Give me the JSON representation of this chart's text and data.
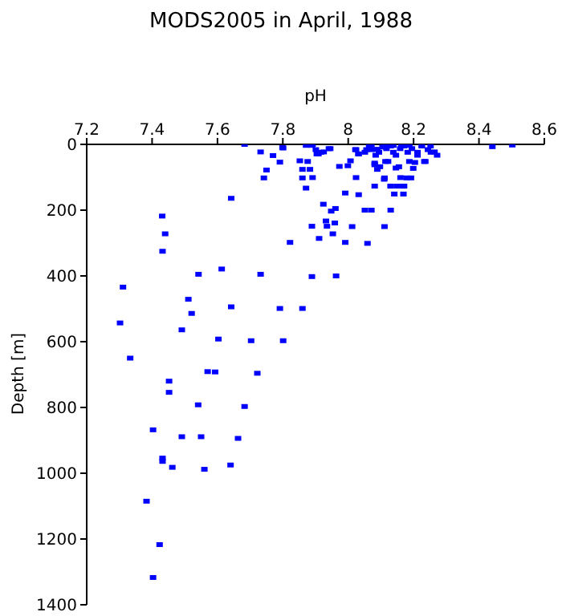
{
  "chart_data": {
    "type": "scatter",
    "title": "MODS2005 in April, 1988",
    "xlabel": "pH",
    "ylabel": "Depth [m]",
    "color": "#0000ff",
    "marker": "square",
    "xlim": [
      7.2,
      8.6
    ],
    "xticks": [
      7.2,
      7.4,
      7.6,
      7.8,
      8,
      8.2,
      8.4,
      8.6
    ],
    "ylim": [
      1400,
      0
    ],
    "yticks": [
      0,
      200,
      400,
      600,
      800,
      1000,
      1200,
      1400
    ],
    "x": [
      7.683,
      7.732,
      7.77,
      7.801,
      7.891,
      7.901,
      7.909,
      7.925,
      7.945,
      8.024,
      8.032,
      8.056,
      8.071,
      8.089,
      8.114,
      8.138,
      8.163,
      8.187,
      8.225,
      8.252,
      8.264,
      8.272,
      8.441,
      8.502,
      7.791,
      7.75,
      7.742,
      7.852,
      7.876,
      7.86,
      7.86,
      7.883,
      7.891,
      7.871,
      7.973,
      8.007,
      7.999,
      8.024,
      7.991,
      8.032,
      8.081,
      8.089,
      8.114,
      8.111,
      8.13,
      8.146,
      8.16,
      8.171,
      8.141,
      8.169,
      8.179,
      8.192,
      8.204,
      8.233,
      8.212,
      7.642,
      7.431,
      7.44,
      7.432,
      7.542,
      7.613,
      7.732,
      7.889,
      7.963,
      7.822,
      7.911,
      7.953,
      7.932,
      7.924,
      7.948,
      7.961,
      7.935,
      7.959,
      7.889,
      7.991,
      8.012,
      8.051,
      8.071,
      8.111,
      8.13,
      8.059,
      7.311,
      7.511,
      7.521,
      7.642,
      7.791,
      7.86,
      7.302,
      7.491,
      7.603,
      7.703,
      7.801,
      7.333,
      7.57,
      7.593,
      7.722,
      7.452,
      7.452,
      7.541,
      7.683,
      7.403,
      7.491,
      7.55,
      7.663,
      7.432,
      7.432,
      7.462,
      7.56,
      7.64,
      7.383,
      7.423,
      7.403,
      7.799,
      7.871,
      7.889,
      7.904,
      7.917,
      7.941,
      8.022,
      8.031,
      8.051,
      8.064,
      8.072,
      8.084,
      8.094,
      8.105,
      8.117,
      8.13,
      8.138,
      8.146,
      8.159,
      8.171,
      8.182,
      8.195,
      8.212,
      8.225,
      8.244,
      8.253,
      8.081,
      8.097,
      8.122,
      8.155,
      8.187,
      8.236,
      8.199,
      8.11,
      8.081,
      8.13,
      8.15,
      8.168
    ],
    "values": [
      0,
      23,
      34,
      11,
      0,
      16,
      29,
      23,
      13,
      16,
      29,
      16,
      2,
      15,
      5,
      3,
      2,
      3,
      3,
      5,
      23,
      33,
      7,
      2,
      54,
      78,
      102,
      50,
      52,
      76,
      102,
      76,
      101,
      133,
      67,
      50,
      65,
      101,
      148,
      153,
      62,
      76,
      52,
      102,
      127,
      72,
      101,
      127,
      151,
      151,
      102,
      102,
      55,
      52,
      33,
      164,
      218,
      272,
      325,
      395,
      379,
      395,
      402,
      400,
      298,
      286,
      272,
      233,
      182,
      203,
      195,
      249,
      239,
      249,
      298,
      250,
      200,
      200,
      250,
      200,
      301,
      434,
      471,
      514,
      494,
      499,
      499,
      543,
      564,
      592,
      597,
      597,
      650,
      691,
      692,
      696,
      720,
      754,
      792,
      797,
      868,
      889,
      889,
      894,
      954,
      964,
      982,
      988,
      975,
      1085,
      1217,
      1317,
      10,
      3,
      3,
      29,
      24,
      13,
      16,
      29,
      24,
      5,
      16,
      33,
      24,
      8,
      13,
      5,
      24,
      33,
      13,
      5,
      24,
      13,
      24,
      5,
      16,
      24,
      57,
      68,
      52,
      68,
      52,
      52,
      73,
      106,
      127,
      127,
      127,
      127
    ]
  }
}
